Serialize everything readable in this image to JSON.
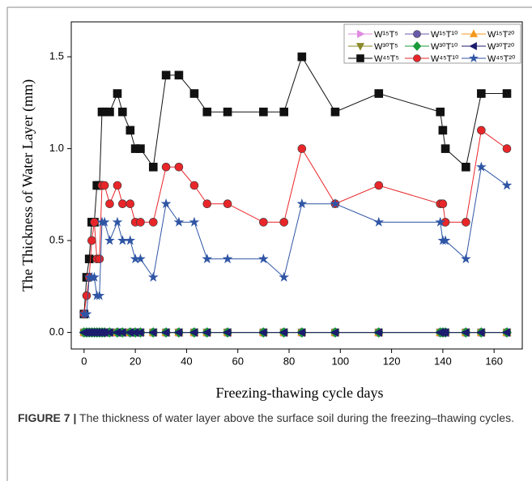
{
  "chart_data": {
    "type": "line",
    "x_label": "Freezing-thawing cycle days",
    "y_label": "The Thickness of Water Layer (mm)",
    "caption_label": "FIGURE 7 |",
    "caption": "The thickness of water layer above the surface soil during the freezing–thawing cycles.",
    "x": [
      0,
      1,
      2,
      3,
      4,
      5,
      6,
      7,
      8,
      10,
      13,
      15,
      18,
      20,
      22,
      27,
      32,
      37,
      43,
      48,
      56,
      70,
      78,
      85,
      98,
      115,
      139,
      140,
      141,
      149,
      155,
      165
    ],
    "xlim": [
      -5,
      171
    ],
    "xticks": [
      0,
      20,
      40,
      60,
      80,
      100,
      120,
      140,
      160
    ],
    "ylim": [
      -0.09,
      1.69
    ],
    "yticks": [
      {
        "value": 0,
        "label": "0.0"
      },
      {
        "value": 0.5,
        "label": "0.5"
      },
      {
        "value": 1,
        "label": "1.0"
      },
      {
        "value": 1.5,
        "label": "1.5"
      }
    ],
    "series": [
      {
        "name": "W¹⁵T⁵",
        "color": "#e08ae0",
        "marker": "triangle-right",
        "values": [
          0,
          0,
          0,
          0,
          0,
          0,
          0,
          0,
          0,
          0,
          0,
          0,
          0,
          0,
          0,
          0,
          0,
          0,
          0,
          0,
          0,
          0,
          0,
          0,
          0,
          0,
          0,
          0,
          0,
          0,
          0,
          0
        ]
      },
      {
        "name": "W¹⁵T¹⁰",
        "color": "#6a5aac",
        "marker": "circle",
        "values": [
          0,
          0,
          0,
          0,
          0,
          0,
          0,
          0,
          0,
          0,
          0,
          0,
          0,
          0,
          0,
          0,
          0,
          0,
          0,
          0,
          0,
          0,
          0,
          0,
          0,
          0,
          0,
          0,
          0,
          0,
          0,
          0
        ]
      },
      {
        "name": "W¹⁵T²⁰",
        "color": "#f39a1e",
        "marker": "triangle-up",
        "values": [
          0,
          0,
          0,
          0,
          0,
          0,
          0,
          0,
          0,
          0,
          0,
          0,
          0,
          0,
          0,
          0,
          0,
          0,
          0,
          0,
          0,
          0,
          0,
          0,
          0,
          0,
          0,
          0,
          0,
          0,
          0,
          0
        ]
      },
      {
        "name": "W³⁰T⁵",
        "color": "#8a8a2a",
        "marker": "triangle-down",
        "values": [
          0,
          0,
          0,
          0,
          0,
          0,
          0,
          0,
          0,
          0,
          0,
          0,
          0,
          0,
          0,
          0,
          0,
          0,
          0,
          0,
          0,
          0,
          0,
          0,
          0,
          0,
          0,
          0,
          0,
          0,
          0,
          0
        ]
      },
      {
        "name": "W³⁰T¹⁰",
        "color": "#1a9a3a",
        "marker": "diamond",
        "values": [
          0,
          0,
          0,
          0,
          0,
          0,
          0,
          0,
          0,
          0,
          0,
          0,
          0,
          0,
          0,
          0,
          0,
          0,
          0,
          0,
          0,
          0,
          0,
          0,
          0,
          0,
          0,
          0,
          0,
          0,
          0,
          0
        ]
      },
      {
        "name": "W³⁰T²⁰",
        "color": "#1c1c6e",
        "marker": "triangle-left",
        "values": [
          0,
          0,
          0,
          0,
          0,
          0,
          0,
          0,
          0,
          0,
          0,
          0,
          0,
          0,
          0,
          0,
          0,
          0,
          0,
          0,
          0,
          0,
          0,
          0,
          0,
          0,
          0,
          0,
          0,
          0,
          0,
          0
        ]
      },
      {
        "name": "W⁴⁵T⁵",
        "color": "#111111",
        "marker": "square",
        "values": [
          0.1,
          0.3,
          0.4,
          0.6,
          0.6,
          0.8,
          0.8,
          1.2,
          1.2,
          1.2,
          1.3,
          1.2,
          1.1,
          1.0,
          1.0,
          0.9,
          1.4,
          1.4,
          1.3,
          1.2,
          1.2,
          1.2,
          1.2,
          1.5,
          1.2,
          1.3,
          1.2,
          1.1,
          1.0,
          0.9,
          1.3,
          1.3
        ]
      },
      {
        "name": "W⁴⁵T¹⁰",
        "color": "#e8262a",
        "marker": "circle",
        "values": [
          0.1,
          0.2,
          0.3,
          0.5,
          0.6,
          0.4,
          0.4,
          0.8,
          0.8,
          0.7,
          0.8,
          0.7,
          0.7,
          0.6,
          0.6,
          0.6,
          0.9,
          0.9,
          0.8,
          0.7,
          0.7,
          0.6,
          0.6,
          1.0,
          0.7,
          0.8,
          0.7,
          0.7,
          0.6,
          0.6,
          1.1,
          1.0
        ]
      },
      {
        "name": "W⁴⁵T²⁰",
        "color": "#2f55a4",
        "marker": "star",
        "values": [
          0.1,
          0.1,
          0.3,
          0.3,
          0.3,
          0.2,
          0.2,
          0.6,
          0.6,
          0.5,
          0.6,
          0.5,
          0.5,
          0.4,
          0.4,
          0.3,
          0.7,
          0.6,
          0.6,
          0.4,
          0.4,
          0.4,
          0.3,
          0.7,
          0.7,
          0.6,
          0.6,
          0.5,
          0.5,
          0.4,
          0.9,
          0.8
        ]
      }
    ]
  }
}
